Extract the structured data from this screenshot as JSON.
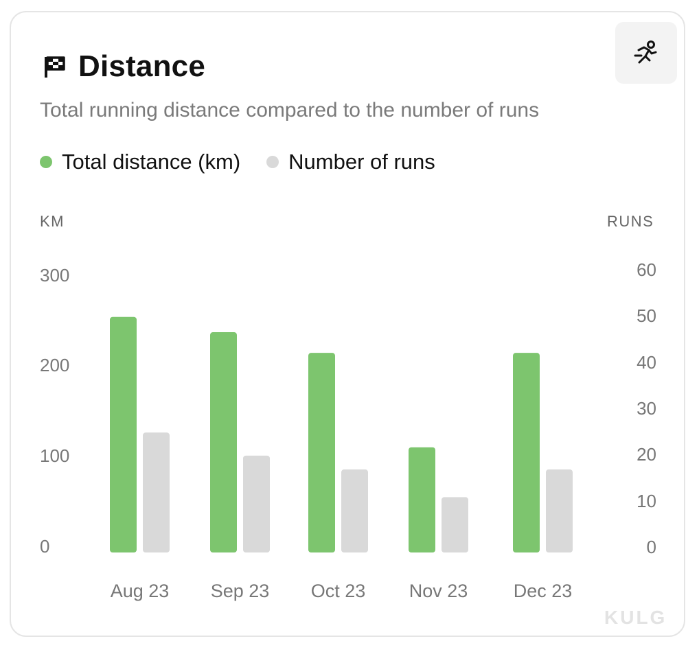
{
  "card": {
    "title": "Distance",
    "subtitle": "Total running distance compared to the number of runs",
    "icons": {
      "title": "flag-icon",
      "button": "runner-icon"
    }
  },
  "legend": [
    {
      "label": "Total distance (km)",
      "color": "#7dc56e"
    },
    {
      "label": "Number of runs",
      "color": "#d9d9d9"
    }
  ],
  "axes": {
    "left_title": "KM",
    "right_title": "RUNS",
    "left_ticks": [
      "300",
      "200",
      "100",
      "0"
    ],
    "right_ticks": [
      "60",
      "50",
      "40",
      "30",
      "20",
      "10",
      "0"
    ]
  },
  "watermark": "KULG",
  "chart_data": {
    "type": "bar",
    "categories": [
      "Aug 23",
      "Sep 23",
      "Oct 23",
      "Nov 23",
      "Dec 23"
    ],
    "series": [
      {
        "name": "Total distance (km)",
        "axis": "left",
        "color": "#7dc56e",
        "values": [
          262,
          245,
          222,
          117,
          222
        ]
      },
      {
        "name": "Number of runs",
        "axis": "right",
        "color": "#d9d9d9",
        "values": [
          26,
          21,
          18,
          12,
          18
        ]
      }
    ],
    "y_left": {
      "label": "KM",
      "ticks": [
        0,
        100,
        200,
        300
      ]
    },
    "y_right": {
      "label": "RUNS",
      "ticks": [
        0,
        10,
        20,
        30,
        40,
        50,
        60
      ]
    },
    "grid": false,
    "legend_position": "top-left"
  }
}
